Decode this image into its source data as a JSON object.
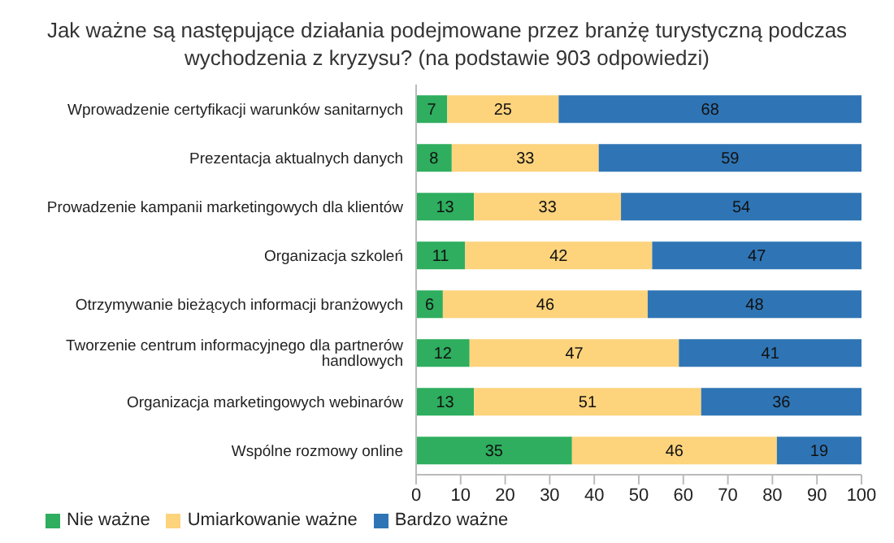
{
  "chart_data": {
    "type": "bar",
    "orientation": "horizontal",
    "stacked": true,
    "title": "Jak ważne są następujące działania podejmowane przez branżę turystyczną podczas wychodzenia z kryzysu? (na podstawie 903 odpowiedzi)",
    "categories": [
      "Wprowadzenie certyfikacji warunków sanitarnych",
      "Prezentacja aktualnych danych",
      "Prowadzenie kampanii marketingowych dla klientów",
      "Organizacja szkoleń",
      "Otrzymywanie bieżących informacji branżowych",
      "Tworzenie centrum informacyjnego dla partnerów handlowych",
      "Organizacja marketingowych webinarów",
      "Wspólne rozmowy online"
    ],
    "series": [
      {
        "name": "Nie ważne",
        "color": "#2eae5e",
        "values": [
          7,
          8,
          13,
          11,
          6,
          12,
          13,
          35
        ]
      },
      {
        "name": "Umiarkowanie ważne",
        "color": "#fdd37c",
        "values": [
          25,
          33,
          33,
          42,
          46,
          47,
          51,
          46
        ]
      },
      {
        "name": "Bardzo ważne",
        "color": "#2f75b5",
        "values": [
          68,
          59,
          54,
          47,
          48,
          41,
          36,
          19
        ]
      }
    ],
    "xlim": [
      0,
      100
    ],
    "xticks": [
      0,
      10,
      20,
      30,
      40,
      50,
      60,
      70,
      80,
      90,
      100
    ],
    "grid": false,
    "legend": "bottom left",
    "data_labels": true
  }
}
